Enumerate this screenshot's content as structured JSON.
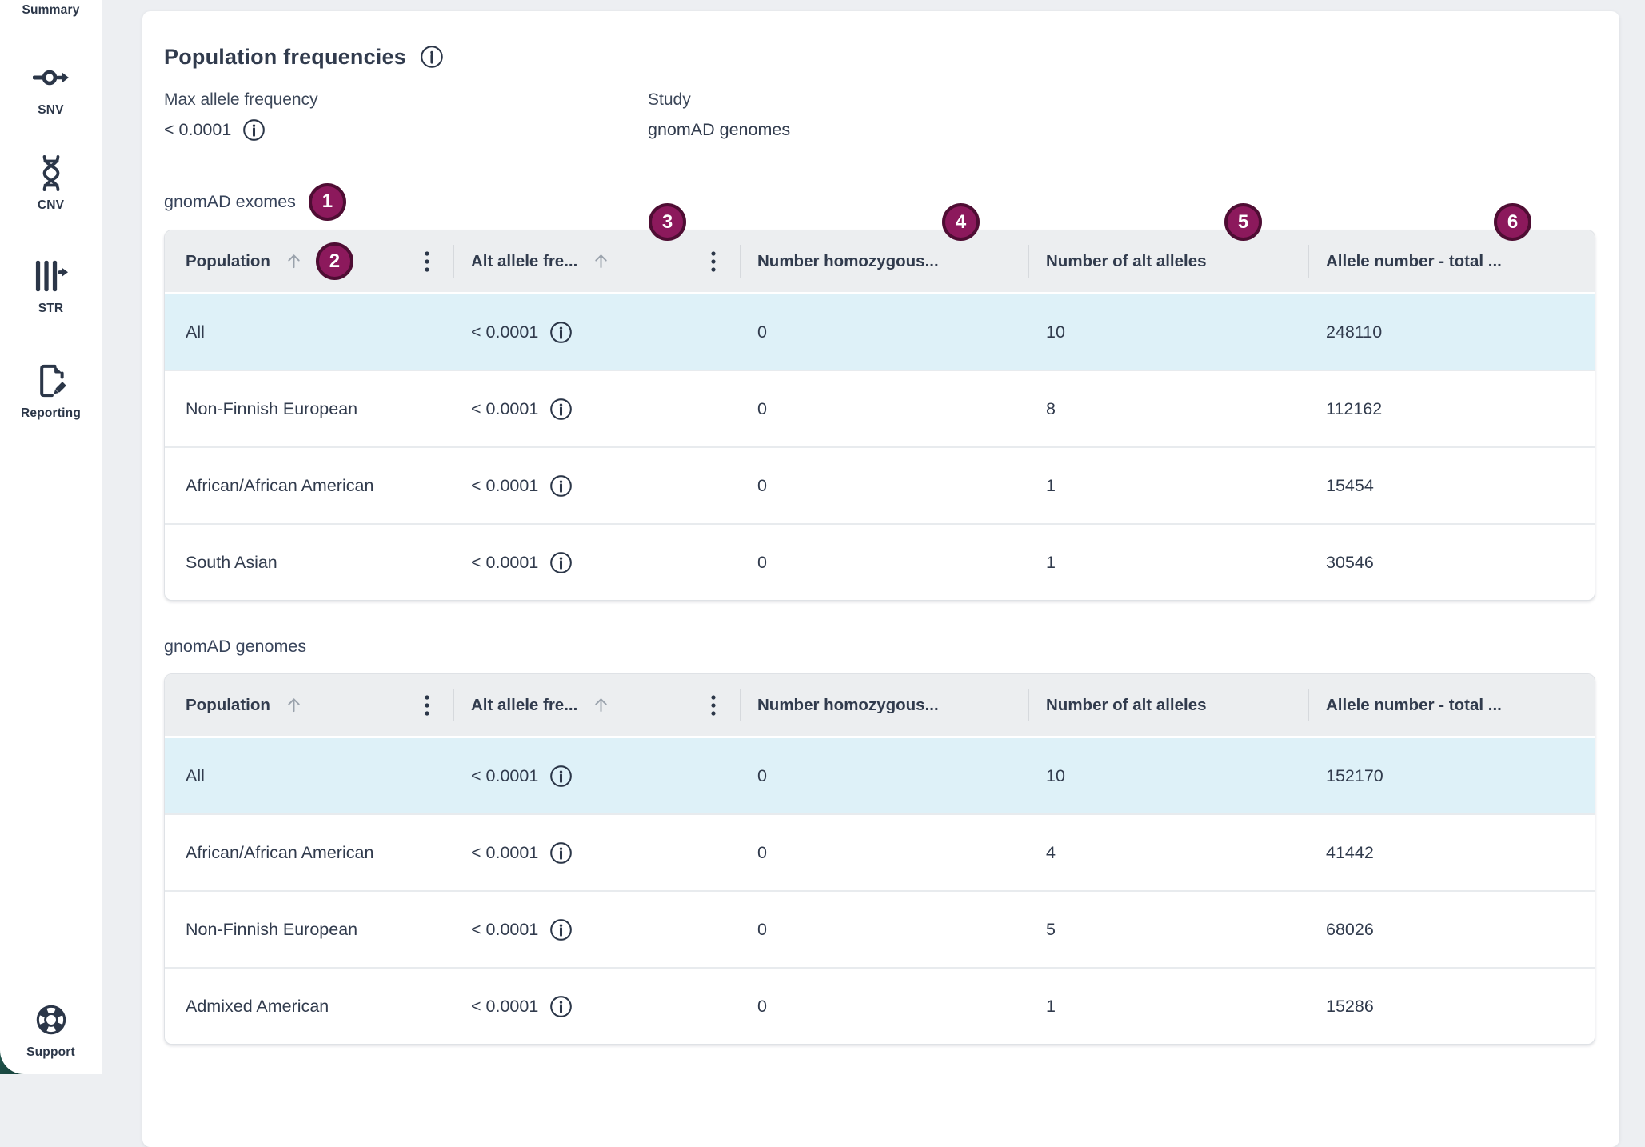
{
  "sidebar": {
    "items": [
      {
        "label": "Summary",
        "icon": "summary-icon"
      },
      {
        "label": "SNV",
        "icon": "snv-icon"
      },
      {
        "label": "CNV",
        "icon": "cnv-icon"
      },
      {
        "label": "STR",
        "icon": "str-icon"
      },
      {
        "label": "Reporting",
        "icon": "reporting-icon"
      }
    ],
    "support_label": "Support"
  },
  "page": {
    "title": "Population frequencies",
    "meta": [
      {
        "label": "Max allele frequency",
        "value": "< 0.0001",
        "has_info_icon": true
      },
      {
        "label": "Study",
        "value": "gnomAD genomes",
        "has_info_icon": false
      }
    ]
  },
  "table_columns": [
    {
      "label": "Population",
      "sort_icon": true,
      "menu_icon": true
    },
    {
      "label": "Alt allele fre...",
      "sort_icon": true,
      "menu_icon": true
    },
    {
      "label": "Number homozygous...",
      "sort_icon": false,
      "menu_icon": false
    },
    {
      "label": "Number of alt alleles",
      "sort_icon": false,
      "menu_icon": false
    },
    {
      "label": "Allele number - total ...",
      "sort_icon": false,
      "menu_icon": false
    }
  ],
  "tables": [
    {
      "section_label": "gnomAD exomes",
      "rows": [
        {
          "population": "All",
          "alt_allele_frequency": "< 0.0001",
          "number_homozygous": "0",
          "number_of_alt_alleles": "10",
          "allele_number_total": "248110",
          "highlighted": true
        },
        {
          "population": "Non-Finnish European",
          "alt_allele_frequency": "< 0.0001",
          "number_homozygous": "0",
          "number_of_alt_alleles": "8",
          "allele_number_total": "112162",
          "highlighted": false
        },
        {
          "population": "African/African American",
          "alt_allele_frequency": "< 0.0001",
          "number_homozygous": "0",
          "number_of_alt_alleles": "1",
          "allele_number_total": "15454",
          "highlighted": false
        },
        {
          "population": "South Asian",
          "alt_allele_frequency": "< 0.0001",
          "number_homozygous": "0",
          "number_of_alt_alleles": "1",
          "allele_number_total": "30546",
          "highlighted": false
        }
      ]
    },
    {
      "section_label": "gnomAD genomes",
      "rows": [
        {
          "population": "All",
          "alt_allele_frequency": "< 0.0001",
          "number_homozygous": "0",
          "number_of_alt_alleles": "10",
          "allele_number_total": "152170",
          "highlighted": true
        },
        {
          "population": "African/African American",
          "alt_allele_frequency": "< 0.0001",
          "number_homozygous": "0",
          "number_of_alt_alleles": "4",
          "allele_number_total": "41442",
          "highlighted": false
        },
        {
          "population": "Non-Finnish European",
          "alt_allele_frequency": "< 0.0001",
          "number_homozygous": "0",
          "number_of_alt_alleles": "5",
          "allele_number_total": "68026",
          "highlighted": false
        },
        {
          "population": "Admixed American",
          "alt_allele_frequency": "< 0.0001",
          "number_homozygous": "0",
          "number_of_alt_alleles": "1",
          "allele_number_total": "15286",
          "highlighted": false
        }
      ]
    }
  ],
  "annotation_badges": [
    "1",
    "2",
    "3",
    "4",
    "5",
    "6"
  ],
  "colors": {
    "badge_fill": "#8c195c",
    "badge_ring": "#4e0d33",
    "highlight_row": "#def1f8",
    "text": "#313b4d",
    "corner_teal": "#1c4c45"
  }
}
